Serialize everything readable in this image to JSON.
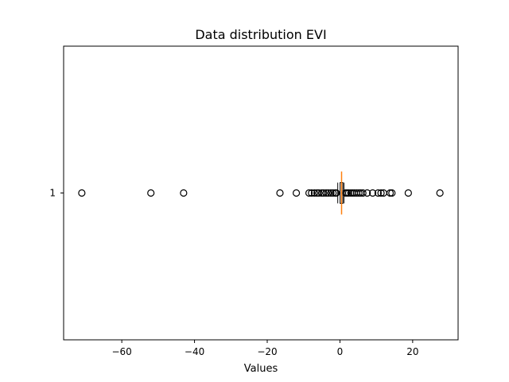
{
  "chart_data": {
    "type": "boxplot",
    "orientation": "horizontal",
    "title": "Data distribution EVI",
    "xlabel": "Values",
    "ylabel": "",
    "xlim": [
      -76,
      32.5
    ],
    "x_ticks": [
      -60,
      -40,
      -20,
      0,
      20
    ],
    "x_tick_labels": [
      "−60",
      "−40",
      "−20",
      "0",
      "20"
    ],
    "categories": [
      "1"
    ],
    "box": {
      "q1": 0.05,
      "median": 0.45,
      "q3": 0.8,
      "whisker_low": -0.6,
      "whisker_high": 1.1
    },
    "outliers": [
      -71,
      -52,
      -43,
      -16.5,
      -12,
      -8.5,
      -7.8,
      -7.0,
      -6.3,
      -5.8,
      -5.0,
      -4.5,
      -3.8,
      -3.2,
      -2.5,
      -1.9,
      -1.3,
      -1.0,
      1.6,
      2.0,
      2.4,
      3.0,
      3.5,
      4.0,
      4.6,
      5.2,
      5.7,
      6.3,
      7.5,
      9.0,
      10.5,
      11.3,
      12.0,
      13.8,
      14.3,
      18.8,
      27.5
    ],
    "colors": {
      "median": "#ff7f0e",
      "box": "#000000",
      "outlier_edge": "#000000"
    },
    "grid": false,
    "legend": "none"
  }
}
